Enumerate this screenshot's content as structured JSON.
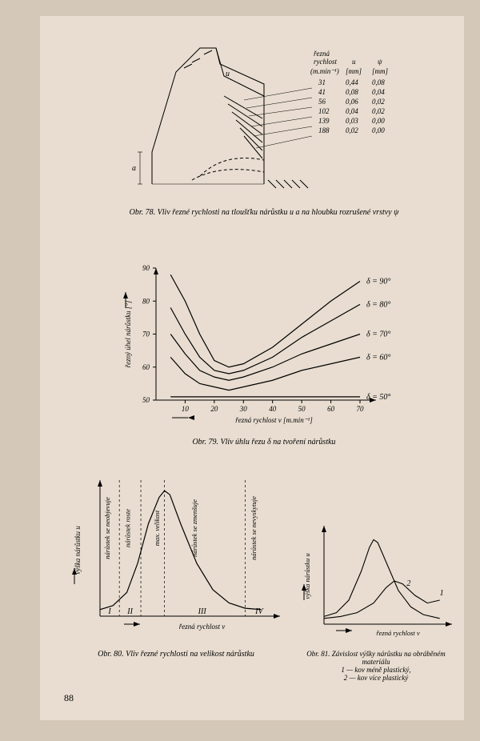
{
  "page_number": "88",
  "fig78": {
    "caption": "Obr. 78. Vliv řezné rychlosti na tloušťku nárůstku u a na hloubku rozrušené vrstvy ψ",
    "table_header": {
      "col1": "řezná\nrychlost",
      "col2": "u",
      "col3": "ψ",
      "unit1": "(m.min⁻¹)",
      "unit2": "[mm]",
      "unit3": "[mm]"
    },
    "rows": [
      {
        "v": "31",
        "u": "0,44",
        "psi": "0,08"
      },
      {
        "v": "41",
        "u": "0,08",
        "psi": "0,04"
      },
      {
        "v": "56",
        "u": "0,06",
        "psi": "0,02"
      },
      {
        "v": "102",
        "u": "0,04",
        "psi": "0,02"
      },
      {
        "v": "139",
        "u": "0,03",
        "psi": "0,00"
      },
      {
        "v": "188",
        "u": "0,02",
        "psi": "0,00"
      }
    ],
    "label_a": "a",
    "label_u": "u",
    "stroke": "#000000"
  },
  "fig79": {
    "caption": "Obr. 79. Vliv úhlu řezu δ na tvoření nárůstku",
    "ylabel": "řezný úhel nárůstku [°]",
    "xlabel": "řezná rychlost v [m.min⁻¹]",
    "xlim": [
      0,
      70
    ],
    "ylim": [
      50,
      90
    ],
    "xticks": [
      10,
      20,
      30,
      40,
      50,
      60,
      70
    ],
    "yticks": [
      50,
      60,
      70,
      80,
      90
    ],
    "curves": [
      {
        "label": "δ = 90°",
        "data": [
          [
            5,
            88
          ],
          [
            10,
            80
          ],
          [
            15,
            70
          ],
          [
            20,
            62
          ],
          [
            25,
            60
          ],
          [
            30,
            61
          ],
          [
            40,
            66
          ],
          [
            50,
            73
          ],
          [
            60,
            80
          ],
          [
            70,
            86
          ]
        ]
      },
      {
        "label": "δ = 80°",
        "data": [
          [
            5,
            78
          ],
          [
            10,
            70
          ],
          [
            15,
            63
          ],
          [
            20,
            59
          ],
          [
            25,
            58
          ],
          [
            30,
            59
          ],
          [
            40,
            63
          ],
          [
            50,
            69
          ],
          [
            60,
            74
          ],
          [
            70,
            79
          ]
        ]
      },
      {
        "label": "δ = 70°",
        "data": [
          [
            5,
            70
          ],
          [
            10,
            64
          ],
          [
            15,
            59
          ],
          [
            20,
            57
          ],
          [
            25,
            56
          ],
          [
            30,
            57
          ],
          [
            40,
            60
          ],
          [
            50,
            64
          ],
          [
            60,
            67
          ],
          [
            70,
            70
          ]
        ]
      },
      {
        "label": "δ = 60°",
        "data": [
          [
            5,
            63
          ],
          [
            10,
            58
          ],
          [
            15,
            55
          ],
          [
            20,
            54
          ],
          [
            25,
            53
          ],
          [
            30,
            54
          ],
          [
            40,
            56
          ],
          [
            50,
            59
          ],
          [
            60,
            61
          ],
          [
            70,
            63
          ]
        ]
      },
      {
        "label": "δ = 50°",
        "data": [
          [
            5,
            51
          ],
          [
            10,
            51
          ],
          [
            15,
            51
          ],
          [
            20,
            51
          ],
          [
            25,
            51
          ],
          [
            30,
            51
          ],
          [
            40,
            51
          ],
          [
            50,
            51
          ],
          [
            60,
            51
          ],
          [
            70,
            51
          ]
        ]
      }
    ],
    "stroke": "#000000",
    "background": "#e8ddd0",
    "line_width": 1.2
  },
  "fig80": {
    "caption": "Obr. 80. Vliv řezné rychlosti na velikost nárůstku",
    "ylabel": "výška nárůstku u",
    "xlabel": "řezná rychlost v",
    "zones": {
      "I": "I",
      "II": "II",
      "III": "III",
      "IV": "IV"
    },
    "zone_labels": {
      "z1": "nárůstek se neobjevuje",
      "z2": "nárůstek roste",
      "z3": "max. velikost",
      "z4": "nárůstek se zmenšuje",
      "z5": "nárůstek se nevyskytuje"
    },
    "curve": [
      [
        0,
        5
      ],
      [
        12,
        8
      ],
      [
        25,
        18
      ],
      [
        35,
        40
      ],
      [
        45,
        70
      ],
      [
        55,
        90
      ],
      [
        60,
        95
      ],
      [
        65,
        92
      ],
      [
        75,
        70
      ],
      [
        90,
        40
      ],
      [
        105,
        20
      ],
      [
        120,
        10
      ],
      [
        135,
        6
      ],
      [
        150,
        5
      ]
    ],
    "stroke": "#000000"
  },
  "fig81": {
    "caption": "Obr. 81. Závislost výšky nárůstku na obráběném materiálu",
    "legend": {
      "1": "1 — kov méně plastický,",
      "2": "2 — kov více plastický"
    },
    "ylabel": "výška nárůstku u",
    "xlabel": "řezná rychlost v",
    "curves": [
      {
        "label": "2",
        "data": [
          [
            0,
            8
          ],
          [
            15,
            12
          ],
          [
            30,
            25
          ],
          [
            45,
            55
          ],
          [
            55,
            80
          ],
          [
            60,
            88
          ],
          [
            65,
            85
          ],
          [
            75,
            65
          ],
          [
            90,
            35
          ],
          [
            105,
            18
          ],
          [
            120,
            10
          ],
          [
            140,
            6
          ]
        ]
      },
      {
        "label": "1",
        "data": [
          [
            0,
            6
          ],
          [
            20,
            8
          ],
          [
            40,
            12
          ],
          [
            60,
            22
          ],
          [
            75,
            38
          ],
          [
            85,
            45
          ],
          [
            95,
            42
          ],
          [
            110,
            30
          ],
          [
            125,
            22
          ],
          [
            140,
            25
          ]
        ]
      }
    ],
    "stroke": "#000000"
  }
}
